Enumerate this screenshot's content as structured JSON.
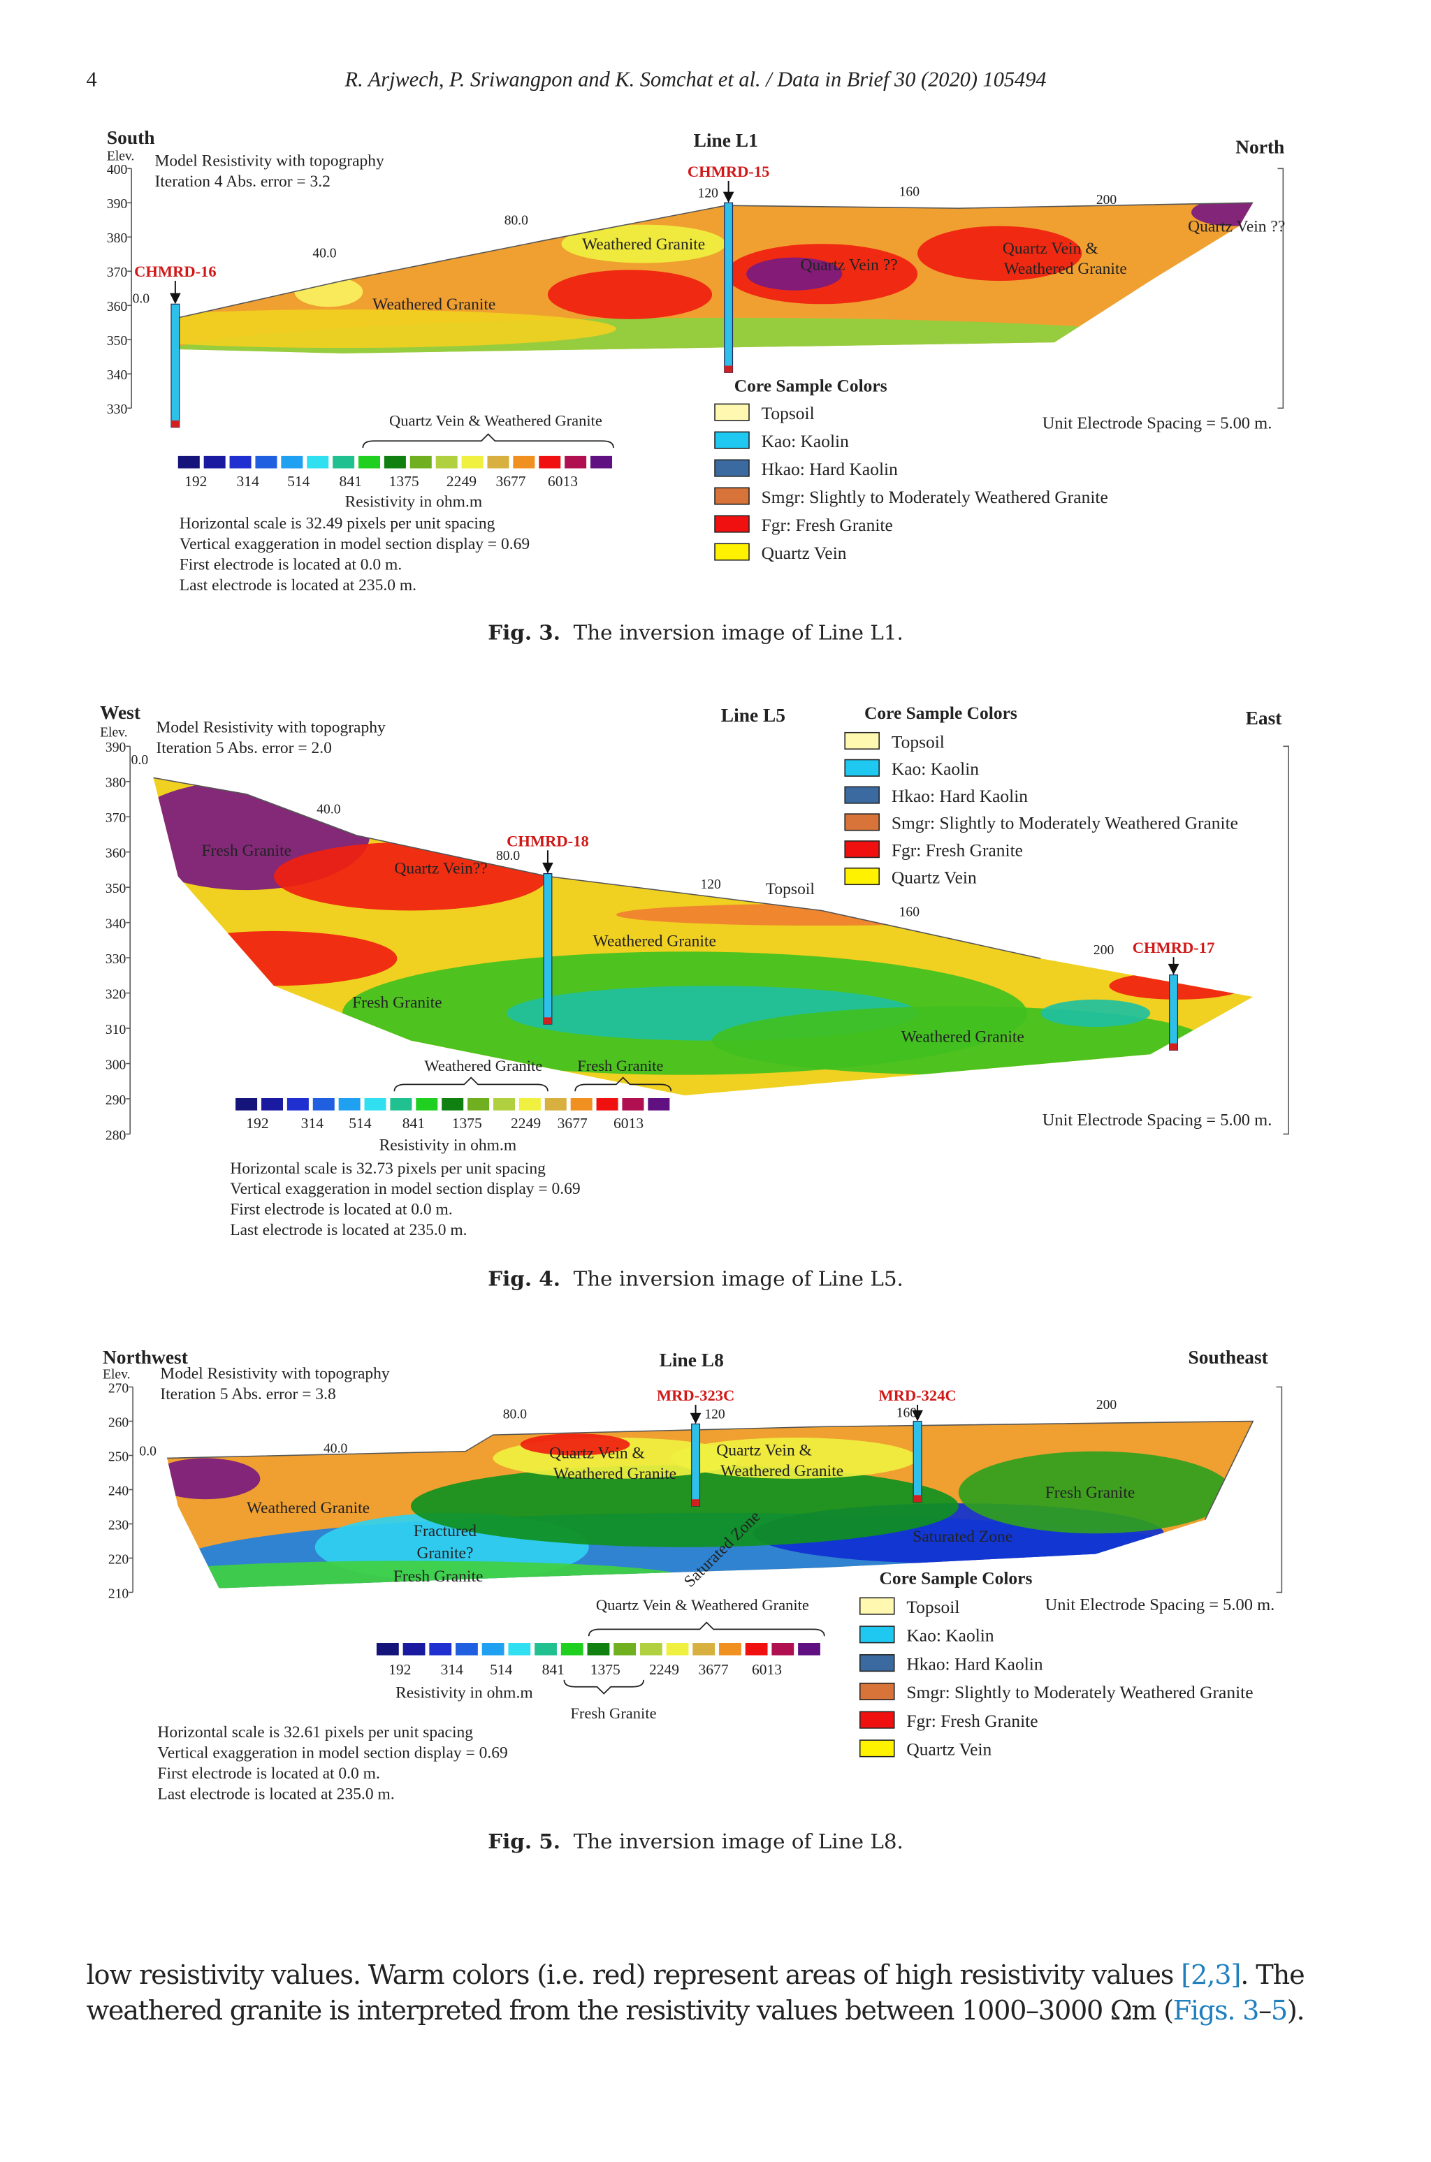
{
  "header": {
    "page_number": "4",
    "running_title": "R. Arjwech, P. Sriwangpon and K. Somchat et al. / Data in Brief 30 (2020) 105494"
  },
  "figures": [
    {
      "directions": [
        "South",
        "North"
      ],
      "line": "Line L1",
      "elev_label": "Elev.",
      "model_title": "Model Resistivity with topography",
      "iteration": "Iteration 4 Abs. error = 3.2",
      "elevations": [
        400,
        390,
        380,
        370,
        360,
        350,
        340,
        330
      ],
      "distances": [
        "0.0",
        "40.0",
        "80.0",
        "120",
        "160",
        "200"
      ],
      "boreholes": [
        "CHMRD-16",
        "CHMRD-15"
      ],
      "annotations": [
        "Weathered Granite",
        "Weathered Granite",
        "Quartz Vein ??",
        "Quartz Vein &",
        "Weathered Granite",
        "Quartz Vein ??"
      ],
      "core_legend": {
        "title": "Core Sample Colors",
        "items": [
          {
            "label": "Topsoil",
            "color": "#fff8b0"
          },
          {
            "label": "Kao: Kaolin",
            "color": "#1ec8f0"
          },
          {
            "label": "Hkao: Hard Kaolin",
            "color": "#3a6aa0"
          },
          {
            "label": "Smgr: Slightly to Moderately Weathered Granite",
            "color": "#d8743a"
          },
          {
            "label": "Fgr: Fresh Granite",
            "color": "#f01010"
          },
          {
            "label": "Quartz Vein",
            "color": "#fff200"
          }
        ]
      },
      "spacing": "Unit Electrode Spacing = 5.00 m.",
      "scale_colors": [
        "#14147a",
        "#1a1aa0",
        "#2030d0",
        "#2060e0",
        "#20a0f0",
        "#30e0f0",
        "#20c090",
        "#20d020",
        "#108010",
        "#70b020",
        "#b0d040",
        "#f0f040",
        "#d8b040",
        "#f09020",
        "#f01010",
        "#b01050",
        "#601080"
      ],
      "scale_values": [
        192,
        314,
        514,
        841,
        1375,
        2249,
        3677,
        6013
      ],
      "scale_unit": "Resistivity in ohm.m",
      "scale_groups": [
        "Quartz Vein & Weathered Granite"
      ],
      "notes": [
        "Horizontal scale is 32.49 pixels per unit spacing",
        "Vertical exaggeration in model section display = 0.69",
        "First electrode is located at 0.0 m.",
        "Last electrode is located at 235.0 m."
      ],
      "caption_label": "Fig. 3.",
      "caption": "The inversion image of Line L1."
    },
    {
      "directions": [
        "West",
        "East"
      ],
      "line": "Line L5",
      "elev_label": "Elev.",
      "model_title": "Model Resistivity with topography",
      "iteration": "Iteration 5 Abs. error = 2.0",
      "elevations": [
        390,
        380,
        370,
        360,
        350,
        340,
        330,
        320,
        310,
        300,
        290,
        280
      ],
      "distances": [
        "0.0",
        "40.0",
        "80.0",
        "120",
        "160",
        "200"
      ],
      "boreholes": [
        "CHMRD-18",
        "CHMRD-17"
      ],
      "annotations": [
        "Fresh Granite",
        "Quartz Vein??",
        "Topsoil",
        "Weathered Granite",
        "Fresh Granite",
        "Weathered Granite"
      ],
      "core_legend": {
        "title": "Core Sample Colors",
        "items": [
          {
            "label": "Topsoil",
            "color": "#fff8b0"
          },
          {
            "label": "Kao: Kaolin",
            "color": "#1ec8f0"
          },
          {
            "label": "Hkao: Hard Kaolin",
            "color": "#3a6aa0"
          },
          {
            "label": "Smgr: Slightly to Moderately Weathered Granite",
            "color": "#d8743a"
          },
          {
            "label": "Fgr: Fresh Granite",
            "color": "#f01010"
          },
          {
            "label": "Quartz Vein",
            "color": "#fff200"
          }
        ]
      },
      "spacing": "Unit Electrode Spacing = 5.00 m.",
      "scale_colors": [
        "#14147a",
        "#1a1aa0",
        "#2030d0",
        "#2060e0",
        "#20a0f0",
        "#30e0f0",
        "#20c090",
        "#20d020",
        "#108010",
        "#70b020",
        "#b0d040",
        "#f0f040",
        "#d8b040",
        "#f09020",
        "#f01010",
        "#b01050",
        "#601080"
      ],
      "scale_values": [
        192,
        314,
        514,
        841,
        1375,
        2249,
        3677,
        6013
      ],
      "scale_unit": "Resistivity in ohm.m",
      "scale_groups": [
        "Weathered Granite",
        "Fresh Granite"
      ],
      "notes": [
        "Horizontal scale is 32.73 pixels per unit spacing",
        "Vertical exaggeration in model section display = 0.69",
        "First electrode is located at 0.0 m.",
        "Last electrode is located at 235.0 m."
      ],
      "caption_label": "Fig. 4.",
      "caption": "The inversion image of Line L5."
    },
    {
      "directions": [
        "Northwest",
        "Southeast"
      ],
      "line": "Line L8",
      "elev_label": "Elev.",
      "model_title": "Model Resistivity with topography",
      "iteration": "Iteration 5 Abs. error = 3.8",
      "elevations": [
        270,
        260,
        250,
        240,
        230,
        220,
        210
      ],
      "distances": [
        "0.0",
        "40.0",
        "80.0",
        "120",
        "160",
        "200"
      ],
      "boreholes": [
        "MRD-323C",
        "MRD-324C"
      ],
      "annotations": [
        "Quartz Vein &",
        "Weathered Granite",
        "Quartz Vein &",
        "Weathered Granite",
        "Fresh Granite",
        "Weathered Granite",
        "Fractured",
        "Granite?",
        "Fresh Granite",
        "Saturated Zone",
        "Saturated Zone"
      ],
      "core_legend": {
        "title": "Core Sample Colors",
        "items": [
          {
            "label": "Topsoil",
            "color": "#fff8b0"
          },
          {
            "label": "Kao: Kaolin",
            "color": "#1ec8f0"
          },
          {
            "label": "Hkao: Hard Kaolin",
            "color": "#3a6aa0"
          },
          {
            "label": "Smgr: Slightly to Moderately Weathered Granite",
            "color": "#d8743a"
          },
          {
            "label": "Fgr: Fresh Granite",
            "color": "#f01010"
          },
          {
            "label": "Quartz Vein",
            "color": "#fff200"
          }
        ]
      },
      "spacing": "Unit Electrode Spacing = 5.00 m.",
      "scale_colors": [
        "#14147a",
        "#1a1aa0",
        "#2030d0",
        "#2060e0",
        "#20a0f0",
        "#30e0f0",
        "#20c090",
        "#20d020",
        "#108010",
        "#70b020",
        "#b0d040",
        "#f0f040",
        "#d8b040",
        "#f09020",
        "#f01010",
        "#b01050",
        "#601080"
      ],
      "scale_values": [
        192,
        314,
        514,
        841,
        1375,
        2249,
        3677,
        6013
      ],
      "scale_unit": "Resistivity in ohm.m",
      "scale_groups": [
        "Quartz Vein & Weathered Granite",
        "Fresh Granite"
      ],
      "notes": [
        "Horizontal scale is 32.61 pixels per unit spacing",
        "Vertical exaggeration in model section display = 0.69",
        "First electrode is located at 0.0 m.",
        "Last electrode is located at 235.0 m."
      ],
      "caption_label": "Fig. 5.",
      "caption": "The inversion image of Line L8."
    }
  ],
  "body": {
    "lines": [
      [
        {
          "text": "low resistivity values. Warm colors (i.e. red) represent areas of high resistivity values ",
          "link": false
        },
        {
          "text": "[2,3]",
          "link": true
        },
        {
          "text": ". The",
          "link": false
        }
      ],
      [
        {
          "text": "weathered granite is interpreted from the resistivity values between 1000–3000 Ωm (",
          "link": false
        },
        {
          "text": "Figs. 3",
          "link": true
        },
        {
          "text": "–",
          "link": false
        },
        {
          "text": "5",
          "link": true
        },
        {
          "text": ").",
          "link": false
        }
      ]
    ]
  }
}
